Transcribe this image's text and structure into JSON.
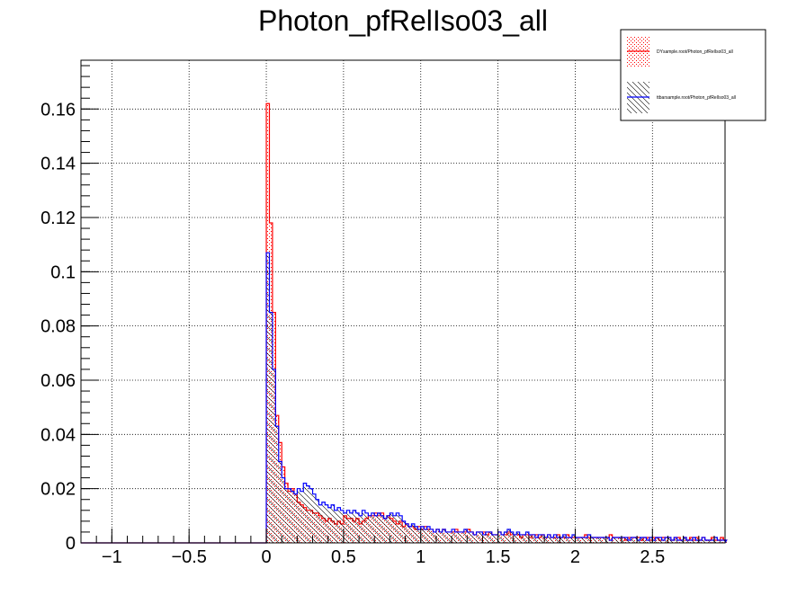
{
  "chart_data": {
    "type": "bar",
    "title": "Photon_pfRelIso03_all",
    "xlabel": "",
    "ylabel": "",
    "xlim": [
      -1.2,
      2.97
    ],
    "ylim": [
      0,
      0.178
    ],
    "grid": true,
    "legend_position": "top-right",
    "x_ticks": [
      {
        "value": -1,
        "label": "−1"
      },
      {
        "value": -0.5,
        "label": "−0.5"
      },
      {
        "value": 0,
        "label": "0"
      },
      {
        "value": 0.5,
        "label": "0.5"
      },
      {
        "value": 1,
        "label": "1"
      },
      {
        "value": 1.5,
        "label": "1.5"
      },
      {
        "value": 2,
        "label": "2"
      },
      {
        "value": 2.5,
        "label": "2.5"
      }
    ],
    "y_ticks": [
      {
        "value": 0,
        "label": "0"
      },
      {
        "value": 0.02,
        "label": "0.02"
      },
      {
        "value": 0.04,
        "label": "0.04"
      },
      {
        "value": 0.06,
        "label": "0.06"
      },
      {
        "value": 0.08,
        "label": "0.08"
      },
      {
        "value": 0.1,
        "label": "0.1"
      },
      {
        "value": 0.12,
        "label": "0.12"
      },
      {
        "value": 0.14,
        "label": "0.14"
      },
      {
        "value": 0.16,
        "label": "0.16"
      }
    ],
    "bin_width": 0.02,
    "x_start": 0.0,
    "series": [
      {
        "name": "DYsample.root/Photon_pfRelIso03_all",
        "color": "#ff0000",
        "fill_pattern": "dots",
        "values": [
          0.162,
          0.118,
          0.085,
          0.047,
          0.037,
          0.028,
          0.022,
          0.019,
          0.02,
          0.018,
          0.015,
          0.014,
          0.013,
          0.012,
          0.012,
          0.011,
          0.011,
          0.01,
          0.009,
          0.008,
          0.009,
          0.008,
          0.007,
          0.008,
          0.007,
          0.01,
          0.009,
          0.009,
          0.008,
          0.009,
          0.007,
          0.008,
          0.009,
          0.01,
          0.01,
          0.011,
          0.01,
          0.011,
          0.009,
          0.01,
          0.009,
          0.008,
          0.007,
          0.008,
          0.006,
          0.007,
          0.006,
          0.006,
          0.005,
          0.006,
          0.005,
          0.006,
          0.005,
          0.005,
          0.004,
          0.005,
          0.004,
          0.005,
          0.004,
          0.004,
          0.004,
          0.005,
          0.004,
          0.004,
          0.004,
          0.005,
          0.004,
          0.003,
          0.004,
          0.004,
          0.004,
          0.003,
          0.004,
          0.003,
          0.003,
          0.004,
          0.003,
          0.003,
          0.004,
          0.003,
          0.003,
          0.003,
          0.002,
          0.003,
          0.003,
          0.002,
          0.003,
          0.003,
          0.002,
          0.003,
          0.002,
          0.003,
          0.002,
          0.002,
          0.003,
          0.002,
          0.002,
          0.003,
          0.002,
          0.002,
          0.002,
          0.002,
          0.002,
          0.003,
          0.002,
          0.002,
          0.002,
          0.002,
          0.002,
          0.002,
          0.002,
          0.003,
          0.002,
          0.002,
          0.002,
          0.002,
          0.001,
          0.002,
          0.002,
          0.002,
          0.002,
          0.001,
          0.002,
          0.002,
          0.001,
          0.002,
          0.002,
          0.001,
          0.002,
          0.002,
          0.002,
          0.001,
          0.002,
          0.002,
          0.001,
          0.002,
          0.001,
          0.002,
          0.001,
          0.002,
          0.001,
          0.002,
          0.001,
          0.001,
          0.002,
          0.001,
          0.001,
          0.002,
          0.001
        ]
      },
      {
        "name": "ttbarsample.root/Photon_pfRelIso03_all",
        "color": "#0000ff",
        "fill_pattern": "hatch",
        "values": [
          0.107,
          0.085,
          0.064,
          0.043,
          0.03,
          0.024,
          0.02,
          0.02,
          0.019,
          0.018,
          0.02,
          0.019,
          0.022,
          0.021,
          0.02,
          0.018,
          0.016,
          0.014,
          0.015,
          0.014,
          0.013,
          0.014,
          0.012,
          0.013,
          0.012,
          0.011,
          0.012,
          0.011,
          0.012,
          0.011,
          0.01,
          0.012,
          0.011,
          0.01,
          0.011,
          0.01,
          0.011,
          0.01,
          0.009,
          0.01,
          0.011,
          0.01,
          0.011,
          0.01,
          0.008,
          0.007,
          0.006,
          0.007,
          0.006,
          0.005,
          0.006,
          0.005,
          0.006,
          0.005,
          0.004,
          0.005,
          0.004,
          0.005,
          0.004,
          0.004,
          0.005,
          0.004,
          0.004,
          0.004,
          0.005,
          0.004,
          0.004,
          0.003,
          0.004,
          0.004,
          0.003,
          0.004,
          0.004,
          0.003,
          0.003,
          0.004,
          0.003,
          0.004,
          0.005,
          0.004,
          0.003,
          0.004,
          0.003,
          0.003,
          0.004,
          0.003,
          0.003,
          0.002,
          0.003,
          0.003,
          0.002,
          0.003,
          0.002,
          0.003,
          0.002,
          0.002,
          0.003,
          0.002,
          0.002,
          0.003,
          0.002,
          0.002,
          0.002,
          0.002,
          0.003,
          0.002,
          0.002,
          0.002,
          0.002,
          0.002,
          0.002,
          0.001,
          0.002,
          0.002,
          0.002,
          0.002,
          0.002,
          0.001,
          0.002,
          0.002,
          0.001,
          0.002,
          0.002,
          0.001,
          0.002,
          0.001,
          0.002,
          0.002,
          0.001,
          0.002,
          0.002,
          0.001,
          0.002,
          0.001,
          0.001,
          0.002,
          0.001,
          0.001,
          0.002,
          0.001,
          0.001,
          0.002,
          0.001,
          0.001,
          0.001,
          0.002,
          0.001,
          0.001,
          0.001
        ]
      }
    ]
  }
}
